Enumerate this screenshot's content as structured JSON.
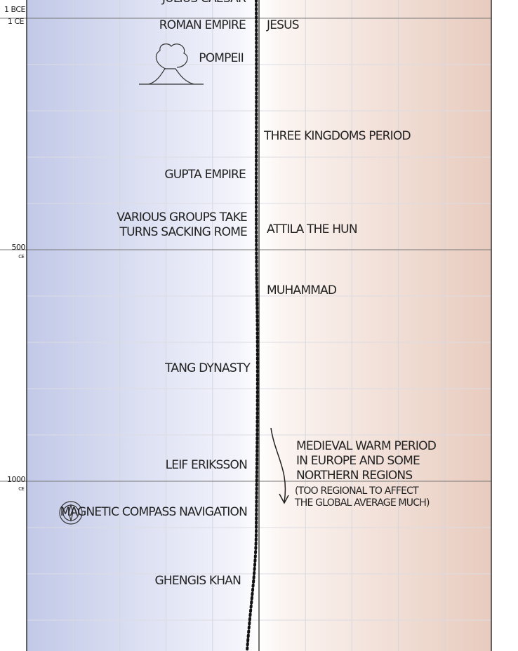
{
  "year_labels": [
    {
      "main": "1 BCE",
      "sub": "1 CE"
    },
    {
      "main": "500",
      "sub": "CE"
    },
    {
      "main": "1000",
      "sub": "CE"
    }
  ],
  "events_left": [
    {
      "lines": [
        "JULIUS CAESAR"
      ]
    },
    {
      "lines": [
        "ROMAN EMPIRE"
      ]
    },
    {
      "lines": [
        "POMPEII"
      ]
    },
    {
      "lines": [
        "GUPTA EMPIRE"
      ]
    },
    {
      "lines": [
        "VARIOUS GROUPS TAKE",
        "TURNS SACKING ROME"
      ]
    },
    {
      "lines": [
        "TANG DYNASTY"
      ]
    },
    {
      "lines": [
        "LEIF ERIKSSON"
      ]
    },
    {
      "lines": [
        "MAGNETIC COMPASS NAVIGATION"
      ]
    },
    {
      "lines": [
        "GHENGIS KHAN"
      ]
    }
  ],
  "events_right": [
    {
      "lines": [
        "JESUS"
      ]
    },
    {
      "lines": [
        "THREE KINGDOMS PERIOD"
      ]
    },
    {
      "lines": [
        "ATTILA THE HUN"
      ]
    },
    {
      "lines": [
        "MUHAMMAD"
      ]
    }
  ],
  "annotation": {
    "lines": [
      "MEDIEVAL WARM PERIOD",
      "IN EUROPE AND SOME",
      "NORTHERN REGIONS"
    ],
    "note_lines": [
      "(TOO REGIONAL TO AFFECT",
      "THE GLOBAL AVERAGE MUCH)"
    ]
  }
}
